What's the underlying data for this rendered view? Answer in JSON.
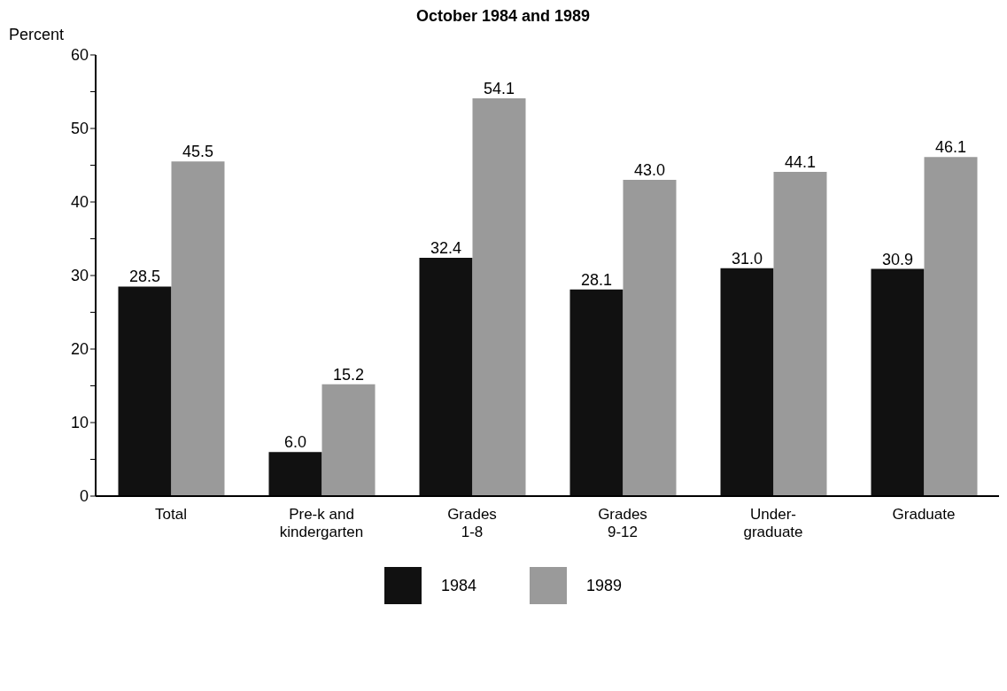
{
  "chart_data": {
    "type": "bar",
    "title": "October 1984 and 1989",
    "ylabel": "Percent",
    "categories": [
      "Total",
      "Pre-k and\nkindergarten",
      "Grades\n1-8",
      "Grades\n9-12",
      "Under-\ngraduate",
      "Graduate"
    ],
    "series": [
      {
        "name": "1984",
        "color": "#111111",
        "values": [
          28.5,
          6.0,
          32.4,
          28.1,
          31.0,
          30.9
        ],
        "value_labels": [
          "28.5",
          "6.0",
          "32.4",
          "28.1",
          "31.0",
          "30.9"
        ]
      },
      {
        "name": "1989",
        "color": "#9a9a9a",
        "values": [
          45.5,
          15.2,
          54.1,
          43.0,
          44.1,
          46.1
        ],
        "value_labels": [
          "45.5",
          "15.2",
          "54.1",
          "43.0",
          "44.1",
          "46.1"
        ]
      }
    ],
    "ylim": [
      0,
      60
    ],
    "yticks": [
      0,
      {
        "value": 5,
        "label": null
      },
      10,
      {
        "value": 15,
        "label": null
      },
      20,
      {
        "value": 25,
        "label": null
      },
      30,
      {
        "value": 35,
        "label": null
      },
      40,
      {
        "value": 45,
        "label": null
      },
      50,
      {
        "value": 55,
        "label": null
      },
      60
    ],
    "grid": false,
    "legend": "bottom"
  }
}
